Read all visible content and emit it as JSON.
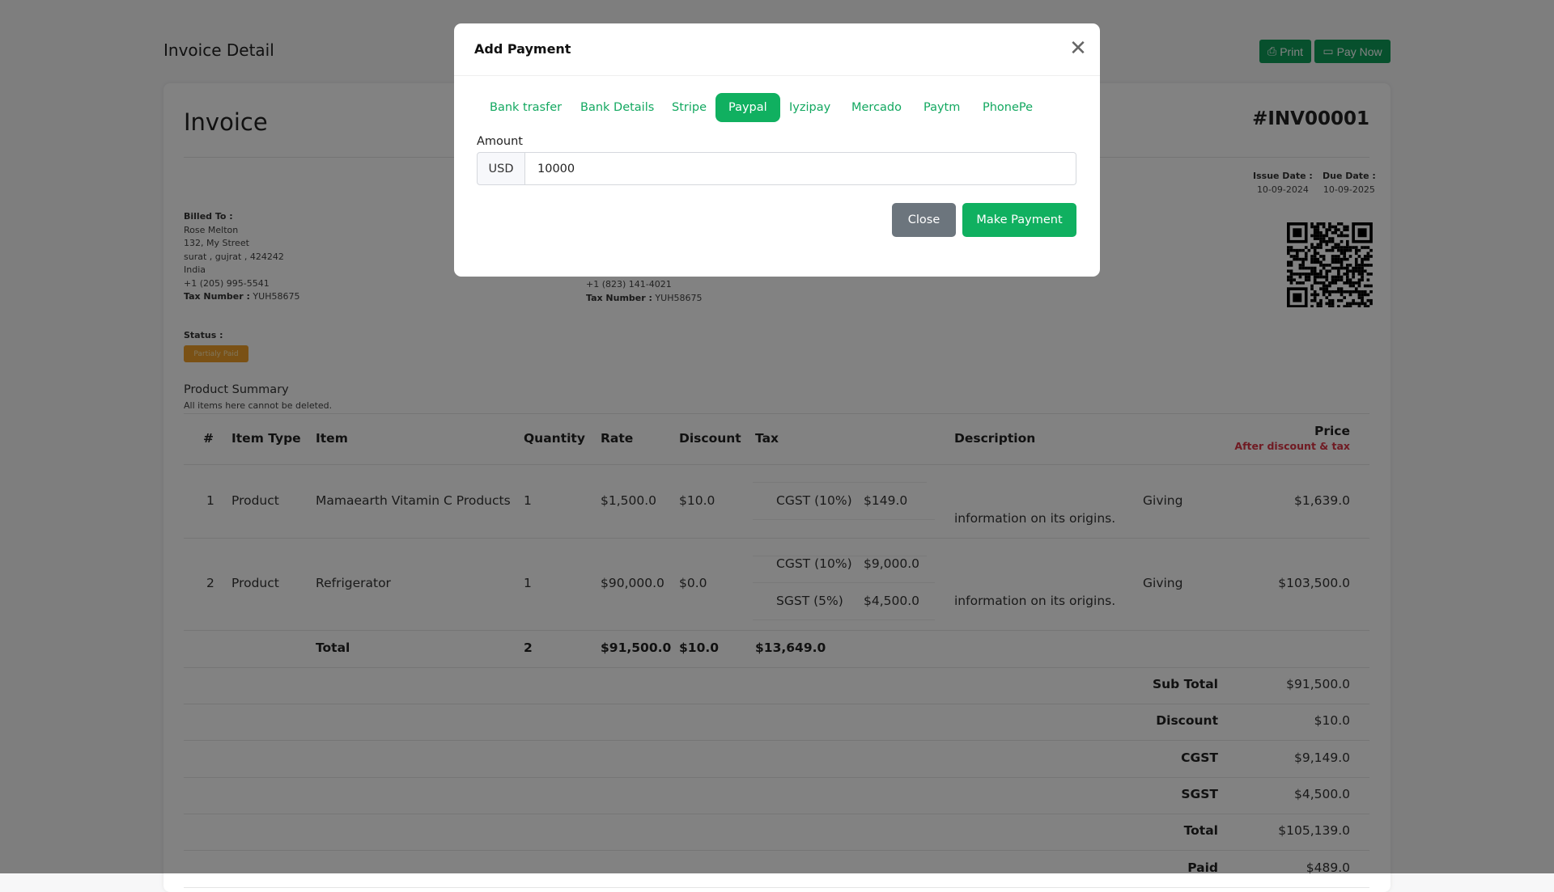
{
  "header": {
    "title": "Invoice Detail",
    "print_label": "Print",
    "pay_now_label": "Pay Now"
  },
  "invoice": {
    "title": "Invoice",
    "number": "#INV00001",
    "issue_date_label": "Issue Date :",
    "issue_date": "10-09-2024",
    "due_date_label": "Due Date :",
    "due_date": "10-09-2025",
    "billed_to": {
      "label": "Billed To :",
      "name": "Rose Melton",
      "street": "132, My Street",
      "city": "surat , gujrat , 424242",
      "country": "India",
      "phone": "+1 (205) 995-5541",
      "tax_label": "Tax Number :",
      "tax": "YUH58675"
    },
    "billed_from": {
      "phone": "+1 (823) 141-4021",
      "tax_label": "Tax Number :",
      "tax": "YUH58675"
    },
    "status_label": "Status :",
    "status": "Partialy Paid",
    "summary_title": "Product Summary",
    "summary_note": "All items here cannot be deleted."
  },
  "table": {
    "headers": {
      "num": "#",
      "type": "Item Type",
      "item": "Item",
      "qty": "Quantity",
      "rate": "Rate",
      "discount": "Discount",
      "tax": "Tax",
      "desc": "Description",
      "price": "Price",
      "price_note": "After discount & tax"
    },
    "rows": [
      {
        "num": "1",
        "type": "Product",
        "item": "Mamaearth Vitamin C Products",
        "qty": "1",
        "rate": "$1,500.0",
        "discount": "$10.0",
        "taxes": [
          {
            "name": "CGST (10%)",
            "amount": "$149.0"
          }
        ],
        "desc1": "Giving",
        "desc2": "information on its origins.",
        "price": "$1,639.0"
      },
      {
        "num": "2",
        "type": "Product",
        "item": "Refrigerator",
        "qty": "1",
        "rate": "$90,000.0",
        "discount": "$0.0",
        "taxes": [
          {
            "name": "CGST (10%)",
            "amount": "$9,000.0"
          },
          {
            "name": "SGST (5%)",
            "amount": "$4,500.0"
          }
        ],
        "desc1": "Giving",
        "desc2": "information on its origins.",
        "price": "$103,500.0"
      }
    ],
    "total": {
      "label": "Total",
      "qty": "2",
      "rate": "$91,500.0",
      "discount": "$10.0",
      "tax": "$13,649.0"
    },
    "summary": [
      {
        "label": "Sub Total",
        "value": "$91,500.0"
      },
      {
        "label": "Discount",
        "value": "$10.0"
      },
      {
        "label": "CGST",
        "value": "$9,149.0"
      },
      {
        "label": "SGST",
        "value": "$4,500.0"
      },
      {
        "label": "Total",
        "value": "$105,139.0"
      },
      {
        "label": "Paid",
        "value": "$489.0"
      }
    ]
  },
  "modal": {
    "title": "Add Payment",
    "tabs": [
      "Bank trasfer",
      "Bank Details",
      "Stripe",
      "Paypal",
      "Iyzipay",
      "Mercado",
      "Paytm",
      "PhonePe"
    ],
    "active_tab": "Paypal",
    "amount_label": "Amount",
    "currency": "USD",
    "amount_value": "10000",
    "close_label": "Close",
    "submit_label": "Make Payment"
  },
  "colors": {
    "accent": "#10b060",
    "secondary": "#6c757d",
    "status": "#f0a02a",
    "price_note": "#dc3545"
  }
}
